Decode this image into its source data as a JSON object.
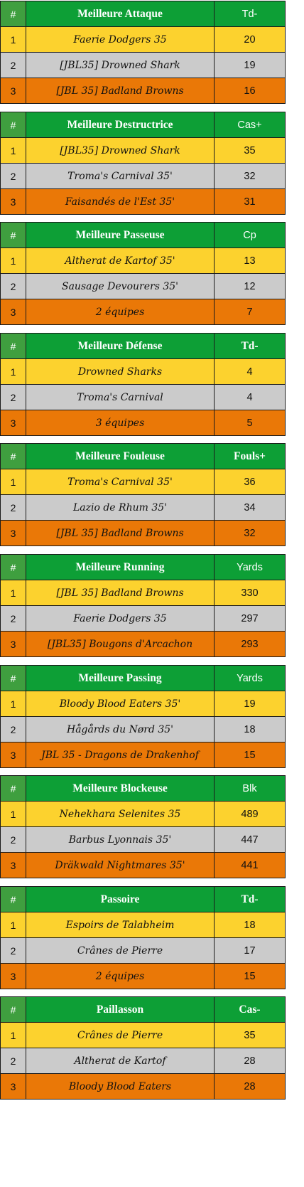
{
  "hash_label": "#",
  "tables": [
    {
      "title": "Meilleure Attaque",
      "stat": "Td-",
      "stat_bold": false,
      "rows": [
        {
          "pos": "1",
          "team": "Faerie Dodgers 35",
          "value": "20"
        },
        {
          "pos": "2",
          "team": "[JBL35] Drowned Shark",
          "value": "19"
        },
        {
          "pos": "3",
          "team": "[JBL 35] Badland Browns",
          "value": "16"
        }
      ]
    },
    {
      "title": "Meilleure Destructrice",
      "stat": "Cas+",
      "stat_bold": false,
      "rows": [
        {
          "pos": "1",
          "team": "[JBL35] Drowned Shark",
          "value": "35"
        },
        {
          "pos": "2",
          "team": "Troma's Carnival 35'",
          "value": "32"
        },
        {
          "pos": "3",
          "team": "Faisandés de l'Est 35'",
          "value": "31"
        }
      ]
    },
    {
      "title": "Meilleure Passeuse",
      "stat": "Cp",
      "stat_bold": false,
      "rows": [
        {
          "pos": "1",
          "team": "Altherat de Kartof 35'",
          "value": "13"
        },
        {
          "pos": "2",
          "team": "Sausage Devourers 35'",
          "value": "12"
        },
        {
          "pos": "3",
          "team": "2 équipes",
          "value": "7"
        }
      ]
    },
    {
      "title": "Meilleure Défense",
      "stat": "Td-",
      "stat_bold": true,
      "rows": [
        {
          "pos": "1",
          "team": "Drowned Sharks",
          "value": "4"
        },
        {
          "pos": "2",
          "team": "Troma's Carnival",
          "value": "4"
        },
        {
          "pos": "3",
          "team": "3 équipes",
          "value": "5"
        }
      ]
    },
    {
      "title": "Meilleure Fouleuse",
      "stat": "Fouls+",
      "stat_bold": true,
      "rows": [
        {
          "pos": "1",
          "team": "Troma's Carnival 35'",
          "value": "36"
        },
        {
          "pos": "2",
          "team": "Lazio de Rhum 35'",
          "value": "34"
        },
        {
          "pos": "3",
          "team": "[JBL 35] Badland Browns",
          "value": "32"
        }
      ]
    },
    {
      "title": "Meilleure Running",
      "stat": "Yards",
      "stat_bold": false,
      "rows": [
        {
          "pos": "1",
          "team": "[JBL 35] Badland Browns",
          "value": "330"
        },
        {
          "pos": "2",
          "team": "Faerie Dodgers 35",
          "value": "297"
        },
        {
          "pos": "3",
          "team": "[JBL35] Bougons d'Arcachon",
          "value": "293"
        }
      ]
    },
    {
      "title": "Meilleure Passing",
      "stat": "Yards",
      "stat_bold": false,
      "rows": [
        {
          "pos": "1",
          "team": "Bloody Blood Eaters 35'",
          "value": "19"
        },
        {
          "pos": "2",
          "team": "Hågårds du Nørd 35'",
          "value": "18"
        },
        {
          "pos": "3",
          "team": "JBL 35 - Dragons de Drakenhof",
          "value": "15"
        }
      ]
    },
    {
      "title": "Meilleure Blockeuse",
      "stat": "Blk",
      "stat_bold": false,
      "rows": [
        {
          "pos": "1",
          "team": "Nehekhara Selenites 35",
          "value": "489"
        },
        {
          "pos": "2",
          "team": "Barbus Lyonnais 35'",
          "value": "447"
        },
        {
          "pos": "3",
          "team": "Dräkwald Nightmares 35'",
          "value": "441"
        }
      ]
    },
    {
      "title": "Passoire",
      "stat": "Td-",
      "stat_bold": true,
      "rows": [
        {
          "pos": "1",
          "team": "Espoirs de Talabheim",
          "value": "18"
        },
        {
          "pos": "2",
          "team": "Crânes de Pierre",
          "value": "17"
        },
        {
          "pos": "3",
          "team": "2 équipes",
          "value": "15"
        }
      ]
    },
    {
      "title": "Paillasson",
      "stat": "Cas-",
      "stat_bold": true,
      "rows": [
        {
          "pos": "1",
          "team": "Crânes de Pierre",
          "value": "35"
        },
        {
          "pos": "2",
          "team": "Altherat de Kartof",
          "value": "28"
        },
        {
          "pos": "3",
          "team": "Bloody Blood Eaters",
          "value": "28"
        }
      ]
    }
  ]
}
